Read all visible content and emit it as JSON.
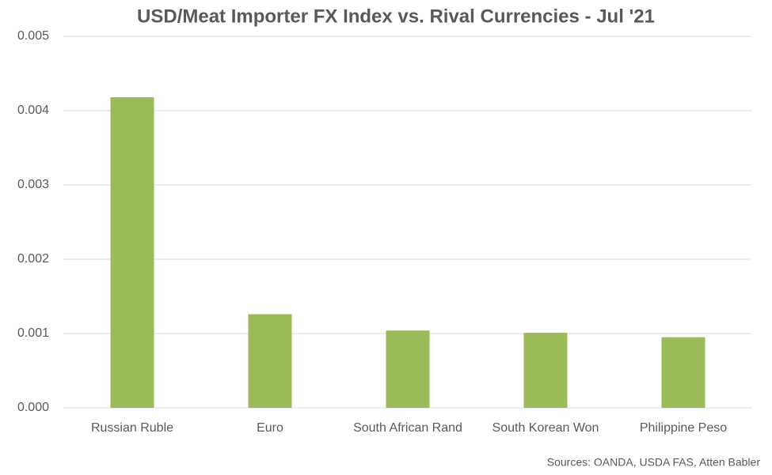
{
  "chart_data": {
    "type": "bar",
    "title": "USD/Meat Importer FX Index vs. Rival Currencies - Jul '21",
    "categories": [
      "Russian Ruble",
      "Euro",
      "South African Rand",
      "South Korean Won",
      "Philippine Peso"
    ],
    "values": [
      0.00418,
      0.00126,
      0.00104,
      0.00101,
      0.00095
    ],
    "color": "#9bbb59",
    "ylim": [
      0,
      0.005
    ],
    "yticks": [
      {
        "value": 0,
        "label": "0.000"
      },
      {
        "value": 0.001,
        "label": "0.001"
      },
      {
        "value": 0.002,
        "label": "0.002"
      },
      {
        "value": 0.003,
        "label": "0.003"
      },
      {
        "value": 0.004,
        "label": "0.004"
      },
      {
        "value": 0.005,
        "label": "0.005"
      }
    ],
    "grid": true,
    "source": "Sources: OANDA, USDA FAS, Atten Babler"
  }
}
